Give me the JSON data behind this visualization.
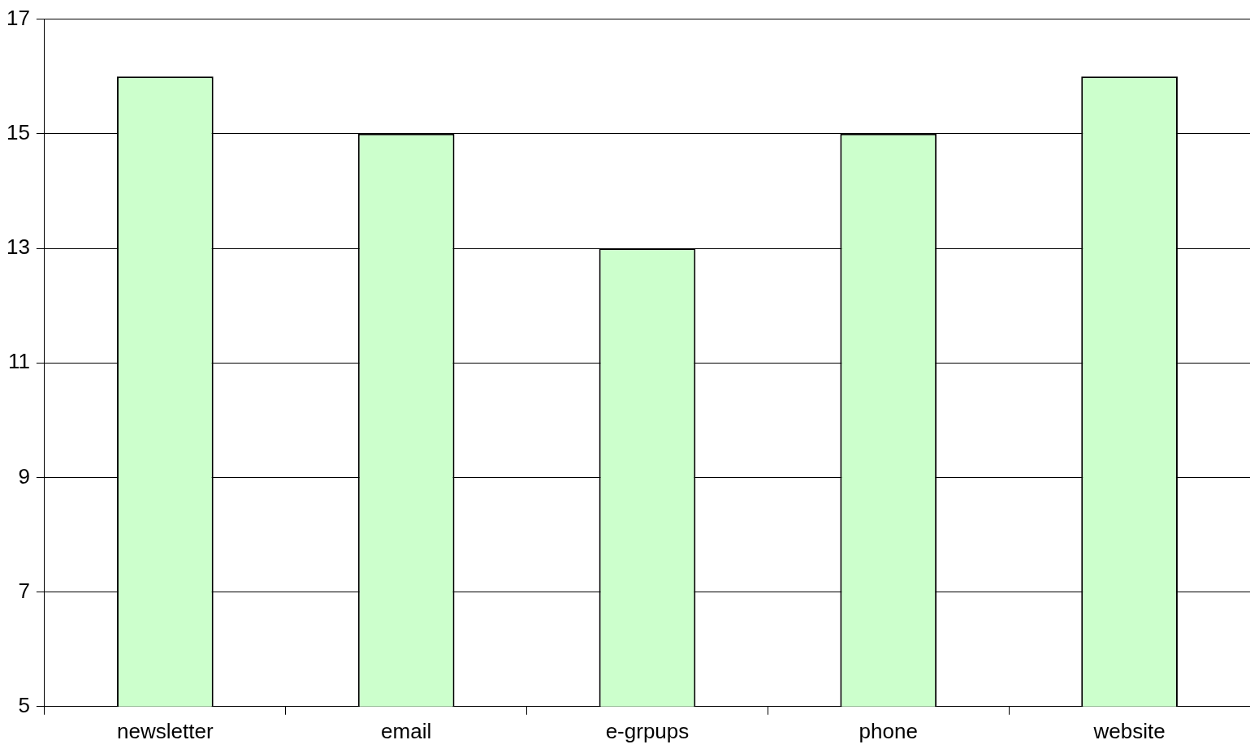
{
  "chart_data": {
    "type": "bar",
    "categories": [
      "newsletter",
      "email",
      "e-grpups",
      "phone",
      "website"
    ],
    "values": [
      16,
      15,
      13,
      15,
      16
    ],
    "color": "#ccffcc",
    "ylim": [
      5,
      17
    ],
    "yticks": [
      5,
      7,
      9,
      11,
      13,
      15,
      17
    ],
    "grid": "y",
    "legend": false
  }
}
